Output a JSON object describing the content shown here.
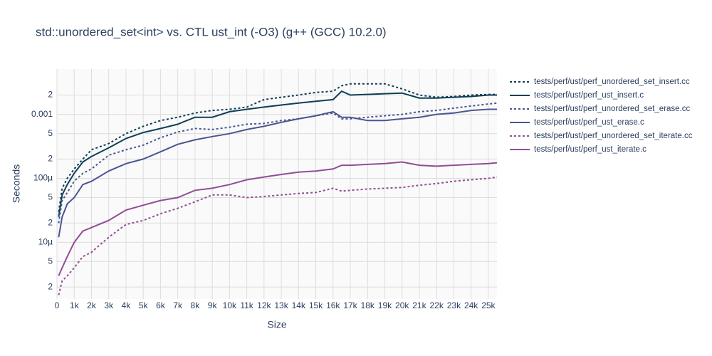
{
  "chart_data": {
    "type": "line",
    "title": "std::unordered_set<int> vs. CTL ust_int (-O3) (g++ (GCC) 10.2.0)",
    "x_label": "Size",
    "y_label": "Seconds",
    "log_y": true,
    "grid": true,
    "legend": "right",
    "x": [
      100,
      300,
      600,
      1000,
      1500,
      2000,
      3000,
      4000,
      5000,
      6000,
      7000,
      8000,
      9000,
      10000,
      11000,
      12000,
      13000,
      14000,
      15000,
      16000,
      16500,
      17000,
      18000,
      19000,
      20000,
      21000,
      22000,
      23000,
      24000,
      25000,
      25500
    ],
    "xlim": [
      0,
      25500
    ],
    "xticks": [
      0,
      {
        "value": 1000,
        "label": "1k"
      },
      {
        "value": 2000,
        "label": "2k"
      },
      {
        "value": 3000,
        "label": "3k"
      },
      {
        "value": 4000,
        "label": "4k"
      },
      {
        "value": 5000,
        "label": "5k"
      },
      {
        "value": 6000,
        "label": "6k"
      },
      {
        "value": 7000,
        "label": "7k"
      },
      {
        "value": 8000,
        "label": "8k"
      },
      {
        "value": 9000,
        "label": "9k"
      },
      {
        "value": 10000,
        "label": "10k"
      },
      {
        "value": 11000,
        "label": "11k"
      },
      {
        "value": 12000,
        "label": "12k"
      },
      {
        "value": 13000,
        "label": "13k"
      },
      {
        "value": 14000,
        "label": "14k"
      },
      {
        "value": 15000,
        "label": "15k"
      },
      {
        "value": 16000,
        "label": "16k"
      },
      {
        "value": 17000,
        "label": "17k"
      },
      {
        "value": 18000,
        "label": "18k"
      },
      {
        "value": 19000,
        "label": "19k"
      },
      {
        "value": 20000,
        "label": "20k"
      },
      {
        "value": 21000,
        "label": "21k"
      },
      {
        "value": 22000,
        "label": "22k"
      },
      {
        "value": 23000,
        "label": "23k"
      },
      {
        "value": 24000,
        "label": "24k"
      },
      {
        "value": 25000,
        "label": "25k"
      }
    ],
    "ylim": [
      1.3e-06,
      0.0051
    ],
    "yticks": [
      {
        "value": 2e-06,
        "label": "2"
      },
      {
        "value": 5e-06,
        "label": "5"
      },
      {
        "value": 1e-05,
        "label": "10µ"
      },
      {
        "value": 2e-05,
        "label": "2"
      },
      {
        "value": 5e-05,
        "label": "5"
      },
      {
        "value": 0.0001,
        "label": "100µ"
      },
      {
        "value": 0.0002,
        "label": "2"
      },
      {
        "value": 0.0005,
        "label": "5"
      },
      0.001,
      {
        "value": 0.002,
        "label": "2"
      }
    ],
    "series": [
      {
        "name": "tests/perf/ust/perf_unordered_set_insert.cc",
        "color": "#0d3f56",
        "dash": "dot",
        "values": [
          3e-05,
          7e-05,
          0.0001,
          0.00014,
          0.0002,
          0.00028,
          0.00035,
          0.0005,
          0.00065,
          0.0008,
          0.0009,
          0.00105,
          0.00115,
          0.0012,
          0.0013,
          0.0017,
          0.00185,
          0.002,
          0.0022,
          0.0023,
          0.0028,
          0.003,
          0.003,
          0.003,
          0.0025,
          0.002,
          0.00185,
          0.0019,
          0.002,
          0.00205,
          0.00205
        ]
      },
      {
        "name": "tests/perf/ust/perf_ust_insert.c",
        "color": "#0d3f56",
        "dash": "solid",
        "values": [
          2.5e-05,
          5.5e-05,
          8e-05,
          0.00012,
          0.00018,
          0.00022,
          0.0003,
          0.00042,
          0.00052,
          0.0006,
          0.0007,
          0.0009,
          0.0009,
          0.0011,
          0.0012,
          0.0013,
          0.0014,
          0.0015,
          0.0016,
          0.0017,
          0.0023,
          0.002,
          0.00205,
          0.0021,
          0.00215,
          0.0018,
          0.0018,
          0.00185,
          0.0019,
          0.002,
          0.002
        ]
      },
      {
        "name": "tests/perf/ust/perf_unordered_set_erase.cc",
        "color": "#4b5591",
        "dash": "dot",
        "values": [
          2e-05,
          4.5e-05,
          6e-05,
          9e-05,
          0.00012,
          0.00014,
          0.00023,
          0.00028,
          0.00033,
          0.00043,
          0.00053,
          0.0006,
          0.00058,
          0.00063,
          0.0007,
          0.00072,
          0.0008,
          0.00085,
          0.00095,
          0.00105,
          0.00085,
          0.00085,
          0.0009,
          0.00095,
          0.001,
          0.0011,
          0.00115,
          0.00125,
          0.00135,
          0.00145,
          0.0015
        ]
      },
      {
        "name": "tests/perf/ust/perf_ust_erase.c",
        "color": "#4b5591",
        "dash": "solid",
        "values": [
          1.2e-05,
          2.5e-05,
          4e-05,
          5e-05,
          8e-05,
          9e-05,
          0.00013,
          0.00017,
          0.0002,
          0.00026,
          0.00034,
          0.0004,
          0.00045,
          0.0005,
          0.00058,
          0.00065,
          0.00075,
          0.00085,
          0.00095,
          0.0011,
          0.0009,
          0.0009,
          0.0008,
          0.0008,
          0.00085,
          0.0009,
          0.001,
          0.00105,
          0.00115,
          0.0012,
          0.0012
        ]
      },
      {
        "name": "tests/perf/ust/perf_unordered_set_iterate.cc",
        "color": "#924c94",
        "dash": "dot",
        "values": [
          1.5e-06,
          2.5e-06,
          3e-06,
          4e-06,
          6e-06,
          7e-06,
          1.2e-05,
          1.9e-05,
          2.2e-05,
          2.8e-05,
          3.4e-05,
          4.3e-05,
          5.5e-05,
          5.5e-05,
          5e-05,
          5.2e-05,
          5.5e-05,
          5.8e-05,
          6e-05,
          7e-05,
          6.3e-05,
          6.5e-05,
          6.8e-05,
          7e-05,
          7.2e-05,
          7.8e-05,
          8.3e-05,
          9e-05,
          9.5e-05,
          0.0001,
          0.000105
        ]
      },
      {
        "name": "tests/perf/ust/perf_ust_iterate.c",
        "color": "#924c94",
        "dash": "solid",
        "values": [
          3e-06,
          4e-06,
          6e-06,
          1e-05,
          1.5e-05,
          1.7e-05,
          2.2e-05,
          3.2e-05,
          3.8e-05,
          4.5e-05,
          5e-05,
          6.5e-05,
          7e-05,
          8e-05,
          9.5e-05,
          0.000105,
          0.000115,
          0.000125,
          0.00013,
          0.00014,
          0.00016,
          0.00016,
          0.000165,
          0.00017,
          0.00018,
          0.00016,
          0.000155,
          0.00016,
          0.000165,
          0.00017,
          0.000175
        ]
      }
    ]
  }
}
